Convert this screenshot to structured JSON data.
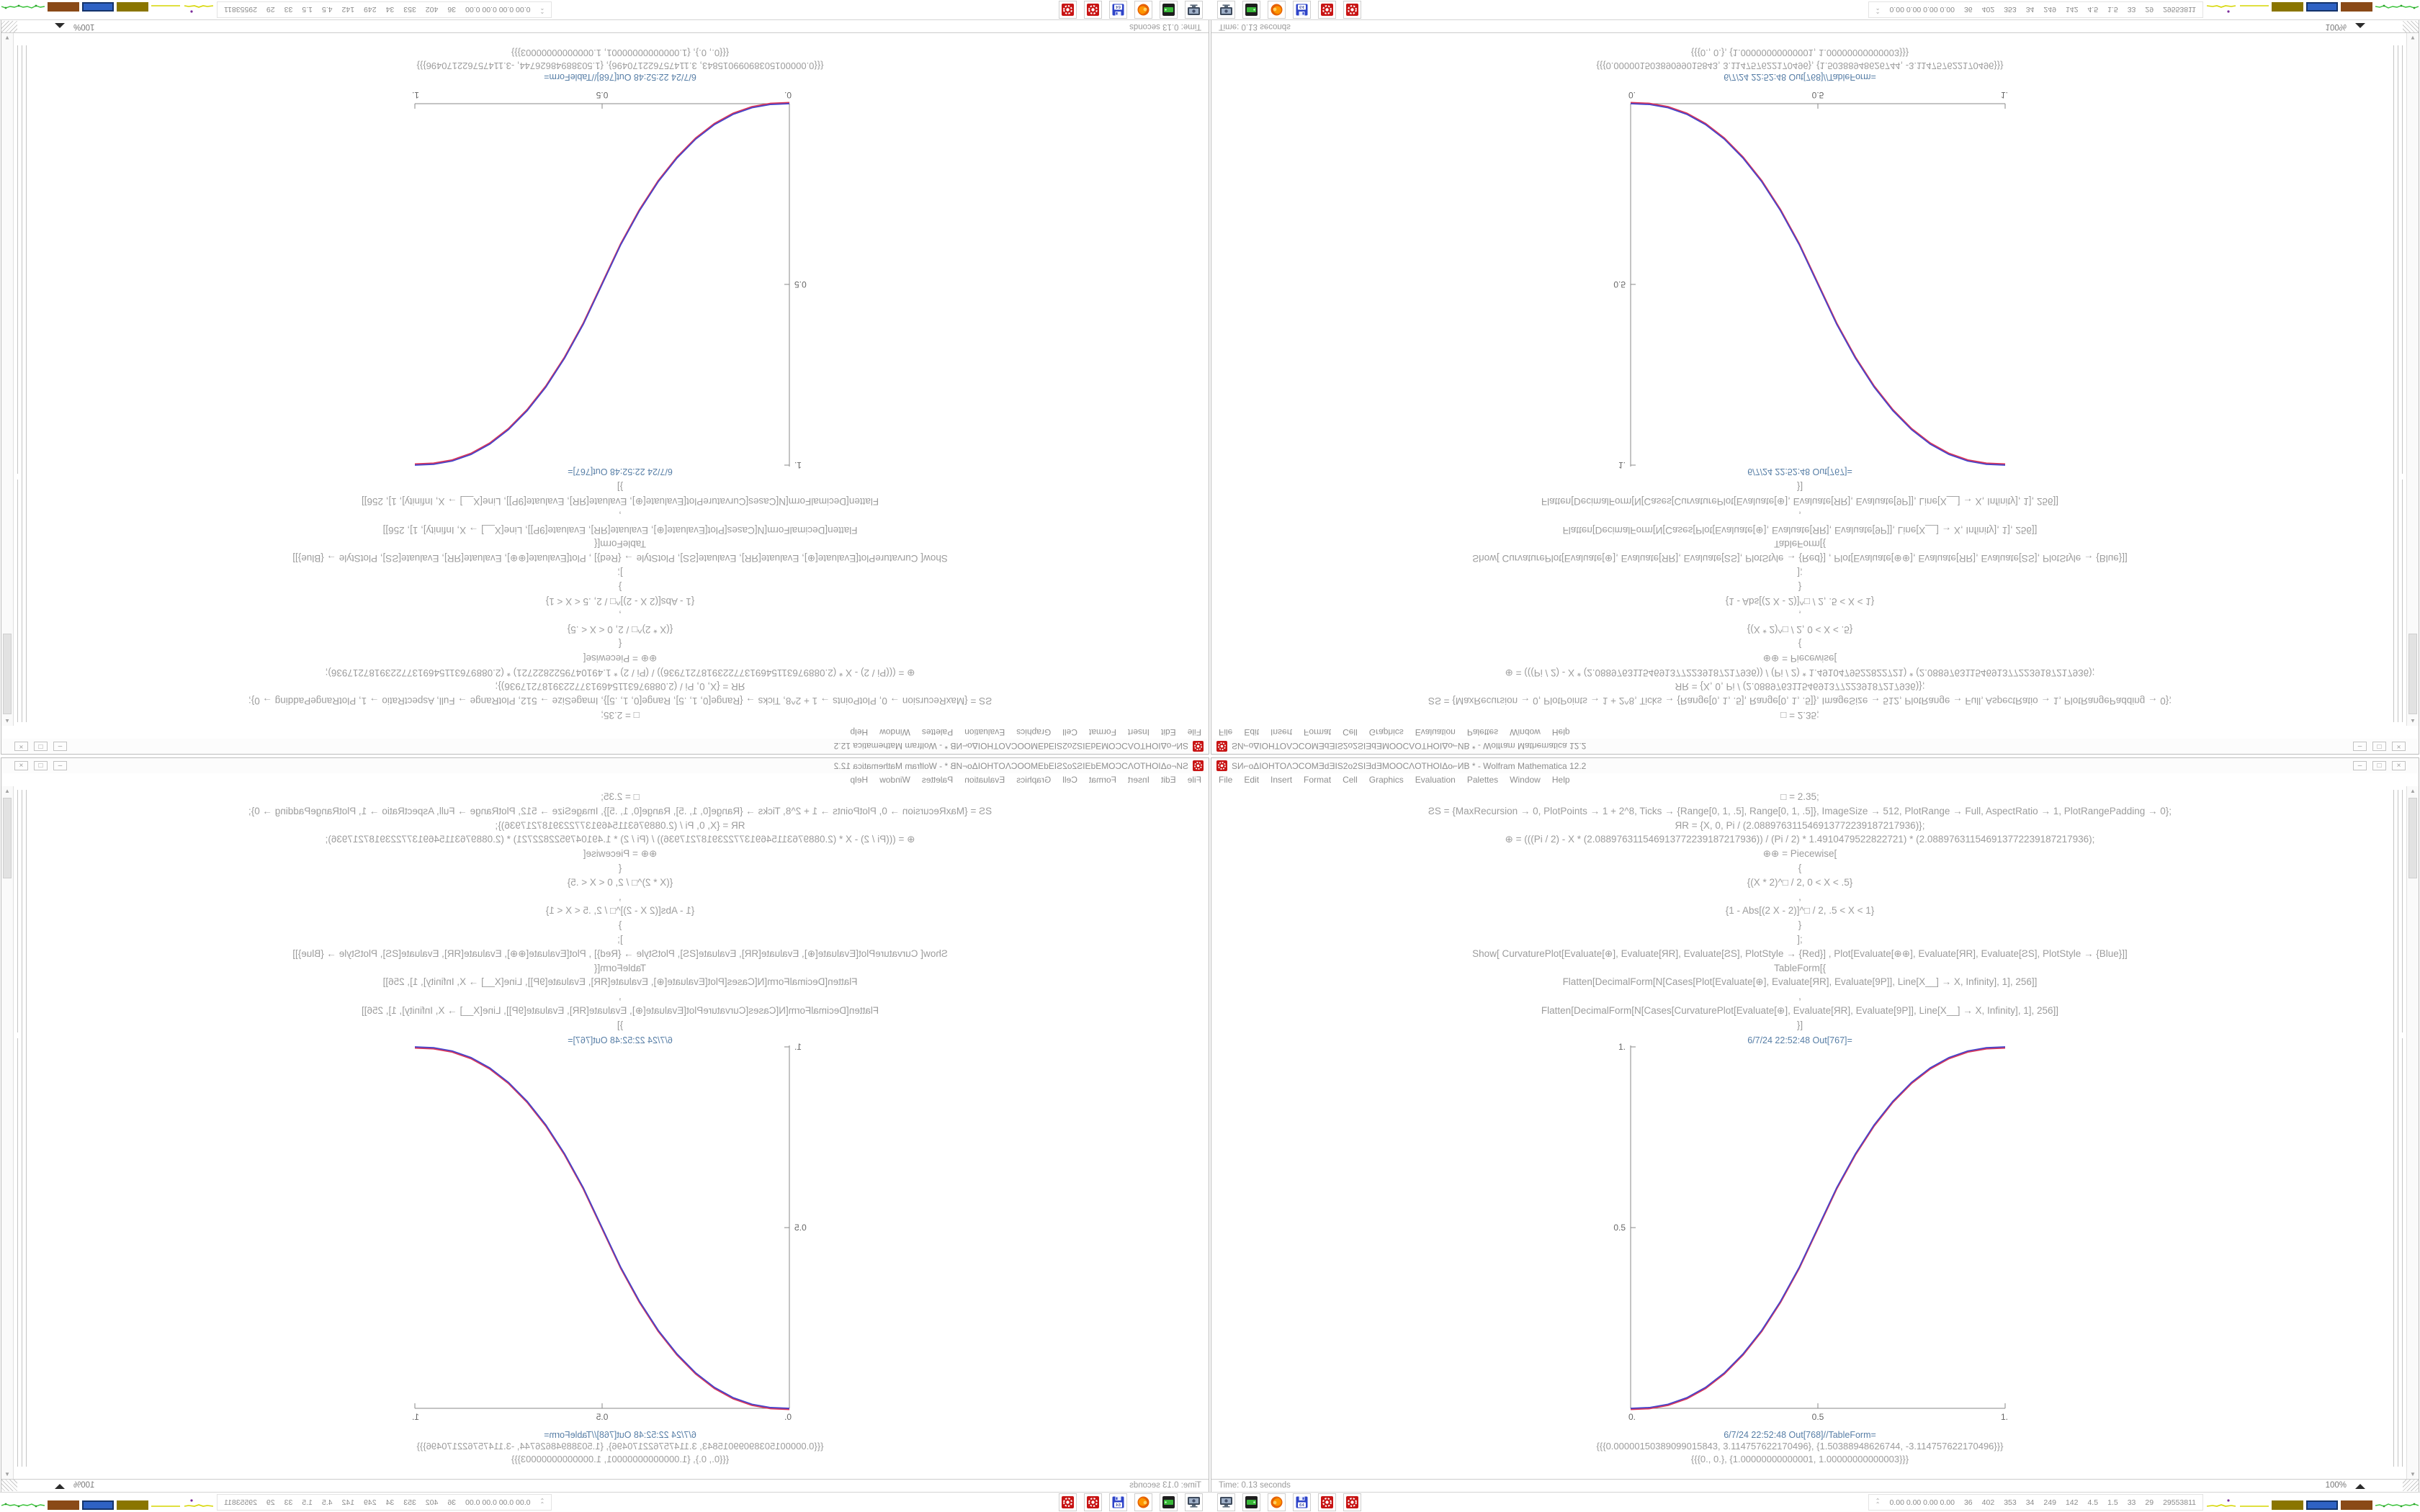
{
  "window": {
    "title": "ЅИ⌐oΔIOHTOΛƆCOMƎdƎIЅ2o2ЅIƎdƎMOOCΛOTHOIΔo⌐ИB * - Wolfram Mathematica 12.2",
    "menu": [
      "File",
      "Edit",
      "Insert",
      "Format",
      "Cell",
      "Graphics",
      "Evaluation",
      "Palettes",
      "Window",
      "Help"
    ],
    "controls": {
      "minimize": "–",
      "maximize": "□",
      "close": "×"
    },
    "scrollbar": {
      "up": "▲",
      "down": "▼"
    }
  },
  "notebook": {
    "code_lines": [
      "□ = 2.35;",
      "ƧS = {MaxRecursion → 0, PlotPoints → 1 + 2^8, Ticks → {Range[0, 1, .5], Range[0, 1, .5]}, ImageSize → 512, PlotRange → Full, AspectRatio → 1, PlotRangePadding → 0};",
      "ЯR = {X, 0, Pi / (2.088976311546913772239187217936)};",
      "⊕ = (((Pi / 2) - X * (2.088976311546913772239187217936)) / (Pi / 2) * 1.4910479522822721) * (2.088976311546913772239187217936);",
      "⊕⊕ = Piecewise[",
      "{",
      "{(X * 2)^□ / 2, 0 < X < .5}",
      ",",
      "{1 - Abs[(2 X - 2)]^□ / 2, .5 < X < 1}",
      "}",
      "];",
      "Show[  CurvaturePlot[Evaluate[⊕], Evaluate[ЯR], Evaluate[ƧS], PlotStyle → {Red}]  ,  Plot[Evaluate[⊕⊕], Evaluate[ЯR], Evaluate[ƧS], PlotStyle → {Blue}]]",
      "TableForm[{",
      "Flatten[DecimalForm[N[Cases[Plot[Evaluate[⊕], Evaluate[ЯR], Evaluate[9P]], Line[X__] → X, Infinity], 1], 256]]",
      ",",
      "Flatten[DecimalForm[N[Cases[CurvaturePlot[Evaluate[⊕], Evaluate[ЯR], Evaluate[9P]], Line[X__] → X, Infinity], 1], 256]]",
      "}]"
    ],
    "out1_label": "6/7/24 22:52:48 Out[767]=",
    "out2_label": "6/7/24 22:52:48 Out[768]//TableForm=",
    "table_lines": [
      "{{{0.00000150389099015843, 3.114757622170496}, {1.50388948626744, -3.114757622170496}}}",
      "{{{0., 0.}, {1.00000000000001, 1.00000000000003}}}"
    ]
  },
  "status": {
    "time": "Time: 0.13 seconds",
    "zoom": "100%"
  },
  "taskbar": {
    "icons": [
      "screenshot-tool",
      "disk-utility",
      "firefox",
      "floppy-64",
      "mathematica",
      "mathematica"
    ],
    "sysmon_values": [
      "0.00 0.00 0.00 0.00",
      "36",
      "402",
      "353",
      "34",
      "249",
      "142",
      "4.5",
      "1.5",
      "33",
      "29",
      "29553811"
    ]
  },
  "colors": {
    "mathematica_red": "#c81414",
    "cell_label_blue": "#577ea6",
    "code_gray": "#9c9c9c",
    "curve_red": "#d8365a",
    "curve_blue": "#4444cc"
  },
  "chart_data": {
    "type": "line",
    "title": "",
    "xlabel": "",
    "ylabel": "",
    "xlim": [
      0,
      1
    ],
    "ylim": [
      0,
      1
    ],
    "x_ticks": [
      "0.",
      "0.5",
      "1."
    ],
    "y_ticks": [
      "1.",
      "0.5"
    ],
    "grid": false,
    "legend": "none",
    "series": [
      {
        "name": "CurvaturePlot (Red)",
        "color": "#d8365a"
      },
      {
        "name": "Plot (Blue)",
        "color": "#4444cc"
      }
    ],
    "points": [
      [
        0,
        0
      ],
      [
        0.05,
        0.0022
      ],
      [
        0.1,
        0.0114
      ],
      [
        0.15,
        0.0295
      ],
      [
        0.2,
        0.058
      ],
      [
        0.25,
        0.098
      ],
      [
        0.3,
        0.1505
      ],
      [
        0.35,
        0.216
      ],
      [
        0.4,
        0.296
      ],
      [
        0.45,
        0.39
      ],
      [
        0.5,
        0.5
      ],
      [
        0.55,
        0.61
      ],
      [
        0.6,
        0.704
      ],
      [
        0.65,
        0.784
      ],
      [
        0.7,
        0.8495
      ],
      [
        0.75,
        0.902
      ],
      [
        0.8,
        0.942
      ],
      [
        0.85,
        0.9705
      ],
      [
        0.9,
        0.9886
      ],
      [
        0.95,
        0.9978
      ],
      [
        1,
        1
      ]
    ],
    "note": "Both series overlap: piecewise smoothstep (X*2)^2.35/2 for 0<X<.5, 1-|2X-2|^2.35/2 for .5<X<1"
  }
}
